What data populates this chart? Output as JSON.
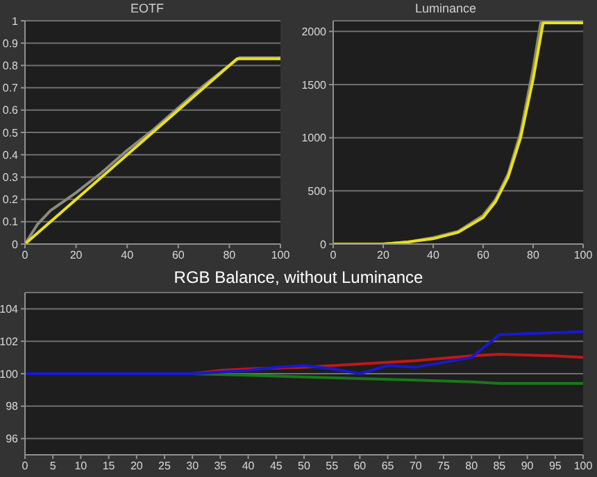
{
  "chart_data": [
    {
      "type": "line",
      "title": "EOTF",
      "xlim": [
        0,
        100
      ],
      "xticks": [
        0,
        20,
        40,
        60,
        80,
        100
      ],
      "ylim": [
        0,
        1
      ],
      "yticks": [
        0,
        0.1,
        0.2,
        0.3,
        0.4,
        0.5,
        0.6,
        0.7,
        0.8,
        0.9,
        1
      ],
      "grid": "y",
      "series": [
        {
          "color": "#8a8a80",
          "x": [
            0,
            5,
            10,
            15,
            20,
            30,
            40,
            50,
            60,
            70,
            80,
            84,
            100
          ],
          "values": [
            0,
            0.09,
            0.15,
            0.19,
            0.23,
            0.32,
            0.42,
            0.51,
            0.61,
            0.71,
            0.8,
            0.835,
            0.835
          ]
        },
        {
          "color": "#e8e020",
          "x": [
            0,
            83,
            100
          ],
          "values": [
            0,
            0.83,
            0.83
          ]
        }
      ]
    },
    {
      "type": "line",
      "title": "Luminance",
      "xlim": [
        0,
        100
      ],
      "xticks": [
        0,
        20,
        40,
        60,
        80,
        100
      ],
      "ylim": [
        0,
        2100
      ],
      "yticks": [
        0,
        500,
        1000,
        1500,
        2000
      ],
      "grid": "y",
      "series": [
        {
          "color": "#8a8a60",
          "x": [
            0,
            20,
            30,
            40,
            50,
            60,
            65,
            70,
            75,
            80,
            83,
            100
          ],
          "values": [
            0,
            0,
            20,
            60,
            120,
            270,
            420,
            660,
            1050,
            1650,
            2080,
            2080
          ]
        },
        {
          "color": "#e8e020",
          "x": [
            0,
            20,
            30,
            40,
            50,
            60,
            65,
            70,
            75,
            80,
            84,
            100
          ],
          "values": [
            0,
            0,
            20,
            50,
            110,
            250,
            400,
            630,
            1000,
            1550,
            2080,
            2080
          ]
        }
      ]
    },
    {
      "type": "line",
      "title": "RGB Balance, without Luminance",
      "xlim": [
        0,
        100
      ],
      "xticks": [
        0,
        5,
        10,
        15,
        20,
        25,
        30,
        35,
        40,
        45,
        50,
        55,
        60,
        65,
        70,
        75,
        80,
        85,
        90,
        95,
        100
      ],
      "ylim": [
        95,
        105
      ],
      "yticks": [
        96,
        98,
        100,
        102,
        104
      ],
      "grid": "y",
      "series": [
        {
          "color": "#c01818",
          "x": [
            0,
            30,
            35,
            40,
            50,
            60,
            70,
            80,
            85,
            95,
            100
          ],
          "values": [
            100,
            100,
            100.2,
            100.3,
            100.4,
            100.6,
            100.8,
            101.1,
            101.2,
            101.1,
            101
          ]
        },
        {
          "color": "#187818",
          "x": [
            0,
            25,
            30,
            40,
            50,
            60,
            70,
            80,
            85,
            100
          ],
          "values": [
            100,
            100,
            100,
            99.9,
            99.8,
            99.7,
            99.6,
            99.5,
            99.4,
            99.4
          ]
        },
        {
          "color": "#1818d0",
          "x": [
            0,
            30,
            40,
            45,
            50,
            55,
            60,
            65,
            70,
            80,
            85,
            100
          ],
          "values": [
            100,
            100,
            100.2,
            100.4,
            100.5,
            100.3,
            100,
            100.5,
            100.4,
            101,
            102.4,
            102.6
          ]
        }
      ]
    }
  ]
}
